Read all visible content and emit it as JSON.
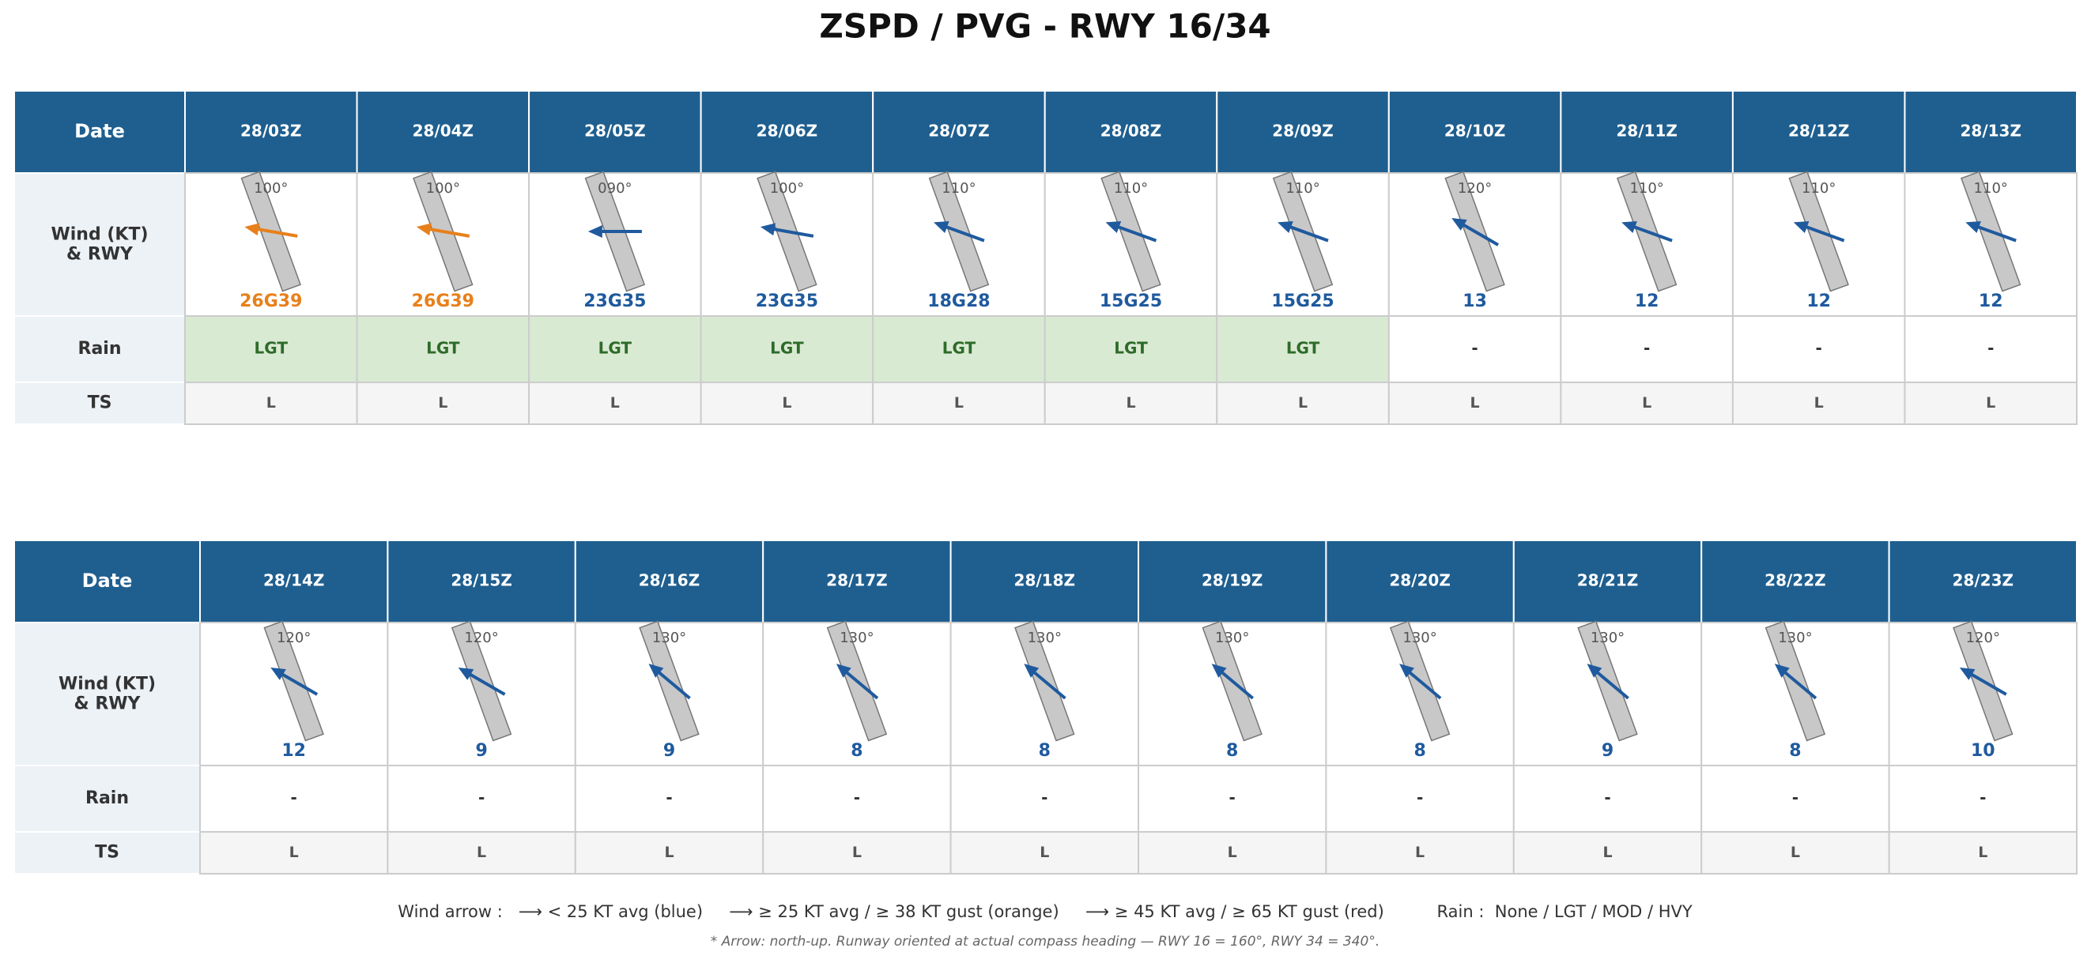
{
  "title": "ZSPD / PVG  -  RWY 16/34",
  "runway_heading": 160,
  "rain_styles": {
    "LGT": {
      "bg": "#d9ead3",
      "color": "#2e6b2a"
    },
    "-": {
      "bg": "#ffffff",
      "color": "#333333"
    }
  },
  "tables": [
    {
      "row_labels": {
        "date": "Date",
        "wind": [
          "Wind (KT)",
          "& RWY"
        ],
        "rain": "Rain",
        "ts": "TS"
      },
      "columns": [
        {
          "date": "28/03Z",
          "dir": 100,
          "dir_label": "100°",
          "wind": "26G39",
          "color": "#e8801a",
          "rain": "LGT",
          "ts": "L"
        },
        {
          "date": "28/04Z",
          "dir": 100,
          "dir_label": "100°",
          "wind": "26G39",
          "color": "#e8801a",
          "rain": "LGT",
          "ts": "L"
        },
        {
          "date": "28/05Z",
          "dir": 90,
          "dir_label": "090°",
          "wind": "23G35",
          "color": "#1f5a9e",
          "rain": "LGT",
          "ts": "L"
        },
        {
          "date": "28/06Z",
          "dir": 100,
          "dir_label": "100°",
          "wind": "23G35",
          "color": "#1f5a9e",
          "rain": "LGT",
          "ts": "L"
        },
        {
          "date": "28/07Z",
          "dir": 110,
          "dir_label": "110°",
          "wind": "18G28",
          "color": "#1f5a9e",
          "rain": "LGT",
          "ts": "L"
        },
        {
          "date": "28/08Z",
          "dir": 110,
          "dir_label": "110°",
          "wind": "15G25",
          "color": "#1f5a9e",
          "rain": "LGT",
          "ts": "L"
        },
        {
          "date": "28/09Z",
          "dir": 110,
          "dir_label": "110°",
          "wind": "15G25",
          "color": "#1f5a9e",
          "rain": "LGT",
          "ts": "L"
        },
        {
          "date": "28/10Z",
          "dir": 120,
          "dir_label": "120°",
          "wind": "13",
          "color": "#1f5a9e",
          "rain": "-",
          "ts": "L"
        },
        {
          "date": "28/11Z",
          "dir": 110,
          "dir_label": "110°",
          "wind": "12",
          "color": "#1f5a9e",
          "rain": "-",
          "ts": "L"
        },
        {
          "date": "28/12Z",
          "dir": 110,
          "dir_label": "110°",
          "wind": "12",
          "color": "#1f5a9e",
          "rain": "-",
          "ts": "L"
        },
        {
          "date": "28/13Z",
          "dir": 110,
          "dir_label": "110°",
          "wind": "12",
          "color": "#1f5a9e",
          "rain": "-",
          "ts": "L"
        }
      ]
    },
    {
      "row_labels": {
        "date": "Date",
        "wind": [
          "Wind (KT)",
          "& RWY"
        ],
        "rain": "Rain",
        "ts": "TS"
      },
      "columns": [
        {
          "date": "28/14Z",
          "dir": 120,
          "dir_label": "120°",
          "wind": "12",
          "color": "#1f5a9e",
          "rain": "-",
          "ts": "L"
        },
        {
          "date": "28/15Z",
          "dir": 120,
          "dir_label": "120°",
          "wind": "9",
          "color": "#1f5a9e",
          "rain": "-",
          "ts": "L"
        },
        {
          "date": "28/16Z",
          "dir": 130,
          "dir_label": "130°",
          "wind": "9",
          "color": "#1f5a9e",
          "rain": "-",
          "ts": "L"
        },
        {
          "date": "28/17Z",
          "dir": 130,
          "dir_label": "130°",
          "wind": "8",
          "color": "#1f5a9e",
          "rain": "-",
          "ts": "L"
        },
        {
          "date": "28/18Z",
          "dir": 130,
          "dir_label": "130°",
          "wind": "8",
          "color": "#1f5a9e",
          "rain": "-",
          "ts": "L"
        },
        {
          "date": "28/19Z",
          "dir": 130,
          "dir_label": "130°",
          "wind": "8",
          "color": "#1f5a9e",
          "rain": "-",
          "ts": "L"
        },
        {
          "date": "28/20Z",
          "dir": 130,
          "dir_label": "130°",
          "wind": "8",
          "color": "#1f5a9e",
          "rain": "-",
          "ts": "L"
        },
        {
          "date": "28/21Z",
          "dir": 130,
          "dir_label": "130°",
          "wind": "9",
          "color": "#1f5a9e",
          "rain": "-",
          "ts": "L"
        },
        {
          "date": "28/22Z",
          "dir": 130,
          "dir_label": "130°",
          "wind": "8",
          "color": "#1f5a9e",
          "rain": "-",
          "ts": "L"
        },
        {
          "date": "28/23Z",
          "dir": 120,
          "dir_label": "120°",
          "wind": "10",
          "color": "#1f5a9e",
          "rain": "-",
          "ts": "L"
        }
      ]
    }
  ],
  "legend": "Wind arrow :   ⟶ < 25 KT avg (blue)     ⟶ ≥ 25 KT avg / ≥ 38 KT gust (orange)     ⟶ ≥ 45 KT avg / ≥ 65 KT gust (red)          Rain :  None / LGT / MOD / HVY",
  "footnote": "* Arrow: north-up. Runway oriented at actual compass heading — RWY 16 = 160°, RWY 34 = 340°."
}
